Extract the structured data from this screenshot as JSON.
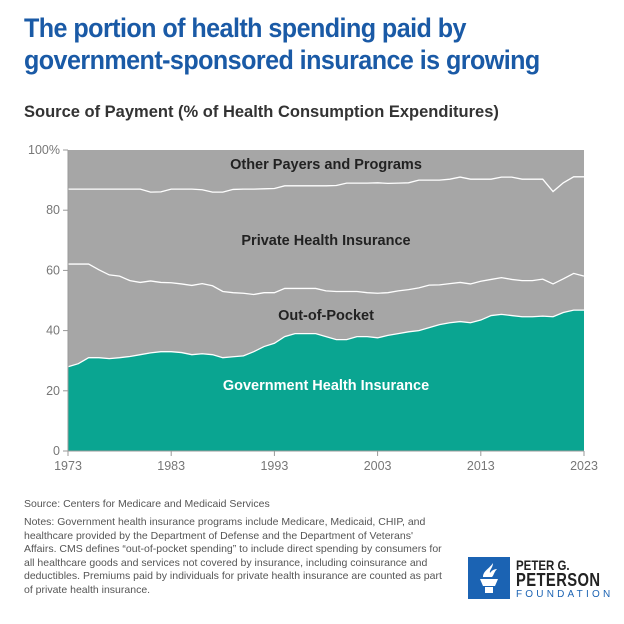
{
  "title": "The portion of health spending paid by government-sponsored insurance is growing",
  "subtitle": "Source of Payment (% of Health Consumption Expenditures)",
  "source": "Source: Centers for Medicare and Medicaid Services",
  "notes": "Notes: Government health insurance programs include Medicare, Medicaid, CHIP, and healthcare provided by the Department of Defense and the Department of Veterans' Affairs. CMS defines “out-of-pocket spending” to include direct spending by consumers for all healthcare goods and services not covered by insurance, including coinsurance and deductibles. Premiums paid by individuals for private health insurance are counted as part of private health insurance.",
  "logo": {
    "line1": "PETER G.",
    "line2": "PETERSON",
    "line3": "FOUNDATION",
    "color": "#1b63b3"
  },
  "chart_data": {
    "type": "area",
    "stacked": true,
    "title": "Source of Payment (% of Health Consumption Expenditures)",
    "xlabel": "",
    "ylabel": "",
    "xlim": [
      1973,
      2023
    ],
    "ylim": [
      0,
      100
    ],
    "x_ticks": [
      "1973",
      "1983",
      "1993",
      "2003",
      "2013",
      "2023"
    ],
    "x_tick_values": [
      1973,
      1983,
      1993,
      2003,
      2013,
      2023
    ],
    "y_ticks": [
      "0",
      "20",
      "40",
      "60",
      "80",
      "100%"
    ],
    "y_tick_values": [
      0,
      20,
      40,
      60,
      80,
      100
    ],
    "grid": false,
    "x": [
      1973,
      1974,
      1975,
      1976,
      1977,
      1978,
      1979,
      1980,
      1981,
      1982,
      1983,
      1984,
      1985,
      1986,
      1987,
      1988,
      1989,
      1990,
      1991,
      1992,
      1993,
      1994,
      1995,
      1996,
      1997,
      1998,
      1999,
      2000,
      2001,
      2002,
      2003,
      2004,
      2005,
      2006,
      2007,
      2008,
      2009,
      2010,
      2011,
      2012,
      2013,
      2014,
      2015,
      2016,
      2017,
      2018,
      2019,
      2020,
      2021,
      2022,
      2023
    ],
    "series": [
      {
        "name": "Government Health Insurance",
        "color": "#0aa591",
        "label_color": "#ffffff",
        "values": [
          28.0,
          29.0,
          31.0,
          31.0,
          30.7,
          31.0,
          31.4,
          32.0,
          32.6,
          33.0,
          33.0,
          32.7,
          32.0,
          32.3,
          32.0,
          31.0,
          31.3,
          31.6,
          33.0,
          34.7,
          35.8,
          38.0,
          39.0,
          39.0,
          39.0,
          38.0,
          37.0,
          37.0,
          38.0,
          38.0,
          37.6,
          38.4,
          39.0,
          39.6,
          40.0,
          41.0,
          42.0,
          42.6,
          43.0,
          42.6,
          43.5,
          45.0,
          45.4,
          45.0,
          44.6,
          44.6,
          44.8,
          44.6,
          46.0,
          46.8,
          46.8
        ]
      },
      {
        "name": "Out-of-Pocket",
        "color": "#a6a6a6",
        "label_color": "#222222",
        "values": [
          34.1,
          33.1,
          31.1,
          29.2,
          27.8,
          27.1,
          25.2,
          24.0,
          23.9,
          23.0,
          22.9,
          22.8,
          23.0,
          23.3,
          22.9,
          22.0,
          21.3,
          20.8,
          19.0,
          17.9,
          16.8,
          16.0,
          15.0,
          15.0,
          15.0,
          15.2,
          16.0,
          16.0,
          15.0,
          14.6,
          14.8,
          14.2,
          14.2,
          14.0,
          14.2,
          14.1,
          13.2,
          13.0,
          13.0,
          12.9,
          12.9,
          12.0,
          12.2,
          12.0,
          12.0,
          12.0,
          12.3,
          10.9,
          11.2,
          12.2,
          11.3
        ]
      },
      {
        "name": "Private Health Insurance",
        "color": "#a6a6a6",
        "label_color": "#222222",
        "values": [
          24.9,
          24.9,
          24.9,
          26.8,
          28.5,
          28.9,
          30.4,
          31.0,
          29.5,
          30.1,
          31.1,
          31.5,
          32.0,
          31.2,
          31.1,
          33.0,
          34.3,
          34.6,
          35.0,
          34.5,
          34.6,
          34.1,
          34.1,
          34.1,
          34.1,
          34.9,
          35.2,
          36.0,
          36.0,
          36.4,
          36.7,
          36.3,
          35.8,
          35.5,
          35.8,
          34.9,
          34.8,
          34.7,
          35.0,
          34.8,
          33.9,
          33.3,
          33.4,
          34.0,
          33.7,
          33.7,
          33.2,
          30.7,
          31.9,
          32.1,
          33.0
        ]
      },
      {
        "name": "Other Payers and Programs",
        "color": "#a6a6a6",
        "label_color": "#222222",
        "values": [
          13.0,
          13.0,
          13.0,
          13.0,
          13.0,
          13.0,
          13.0,
          13.0,
          14.0,
          13.9,
          13.0,
          13.0,
          13.0,
          13.2,
          14.0,
          14.0,
          13.1,
          13.0,
          13.0,
          12.9,
          12.8,
          11.9,
          11.9,
          11.9,
          11.9,
          11.9,
          11.8,
          11.0,
          11.0,
          11.0,
          10.9,
          11.1,
          11.0,
          10.9,
          10.0,
          10.0,
          10.0,
          9.7,
          9.0,
          9.7,
          9.7,
          9.7,
          9.0,
          9.0,
          9.7,
          9.7,
          9.7,
          13.8,
          10.9,
          8.9,
          8.9
        ]
      }
    ],
    "legend": "labels inside areas"
  }
}
